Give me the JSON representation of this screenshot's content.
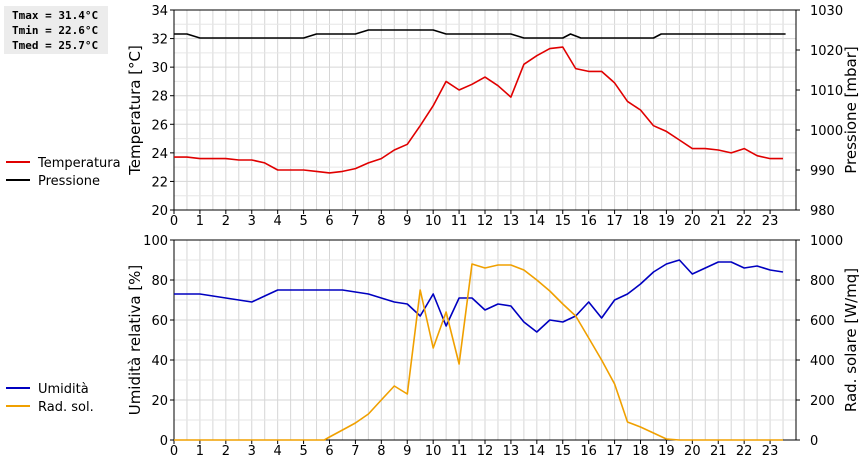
{
  "stats": {
    "tmax": "Tmax = 31.4°C",
    "tmin": "Tmin = 22.6°C",
    "tmed": "Tmed = 25.7°C"
  },
  "chart_data": [
    {
      "type": "line",
      "title": "",
      "xlabel": "",
      "x_ticks": [
        0,
        1,
        2,
        3,
        4,
        5,
        6,
        7,
        8,
        9,
        10,
        11,
        12,
        13,
        14,
        15,
        16,
        17,
        18,
        19,
        20,
        21,
        22,
        23
      ],
      "xlim": [
        0,
        24
      ],
      "ylabel_left": "Temperatura [°C]",
      "ylim_left": [
        20,
        34
      ],
      "yticks_left": [
        20,
        22,
        24,
        26,
        28,
        30,
        32,
        34
      ],
      "ylabel_right": "Pressione [mbar]",
      "ylim_right": [
        980,
        1030
      ],
      "yticks_right": [
        980,
        990,
        1000,
        1010,
        1020,
        1030
      ],
      "grid": true,
      "legend_position": "left",
      "series": [
        {
          "name": "Temperatura",
          "axis": "left",
          "color": "#e00000",
          "x": [
            0,
            0.5,
            1,
            1.5,
            2,
            2.5,
            3,
            3.5,
            4,
            4.5,
            5,
            5.5,
            6,
            6.5,
            7,
            7.5,
            8,
            8.5,
            9,
            9.5,
            10,
            10.5,
            11,
            11.5,
            12,
            12.5,
            13,
            13.5,
            14,
            14.5,
            15,
            15.5,
            16,
            16.5,
            17,
            17.5,
            18,
            18.5,
            19,
            19.5,
            20,
            20.5,
            21,
            21.5,
            22,
            22.5,
            23,
            23.5
          ],
          "values": [
            23.7,
            23.7,
            23.6,
            23.6,
            23.6,
            23.5,
            23.5,
            23.3,
            22.8,
            22.8,
            22.8,
            22.7,
            22.6,
            22.7,
            22.9,
            23.3,
            23.6,
            24.2,
            24.6,
            25.9,
            27.3,
            29.0,
            28.4,
            28.8,
            29.3,
            28.7,
            27.9,
            30.2,
            30.8,
            31.3,
            31.4,
            29.9,
            29.7,
            29.7,
            28.9,
            27.6,
            27.0,
            25.9,
            25.5,
            24.9,
            24.3,
            24.3,
            24.2,
            24.0,
            24.3,
            23.8,
            23.6,
            23.6
          ]
        },
        {
          "name": "Pressione",
          "axis": "right",
          "color": "#000000",
          "x": [
            0,
            0.5,
            1,
            2,
            3,
            4,
            5,
            5.5,
            6,
            7,
            7.5,
            8,
            9,
            10,
            10.5,
            11,
            12,
            13,
            13.5,
            14,
            15,
            15.3,
            15.7,
            16,
            17,
            18,
            18.5,
            18.8,
            19,
            20,
            21,
            22,
            23,
            23.6
          ],
          "values": [
            1024,
            1024,
            1023,
            1023,
            1023,
            1023,
            1023,
            1024,
            1024,
            1024,
            1025,
            1025,
            1025,
            1025,
            1024,
            1024,
            1024,
            1024,
            1023,
            1023,
            1023,
            1024,
            1023,
            1023,
            1023,
            1023,
            1023,
            1024,
            1024,
            1024,
            1024,
            1024,
            1024,
            1024
          ]
        }
      ]
    },
    {
      "type": "line",
      "title": "",
      "xlabel": "",
      "x_ticks": [
        0,
        1,
        2,
        3,
        4,
        5,
        6,
        7,
        8,
        9,
        10,
        11,
        12,
        13,
        14,
        15,
        16,
        17,
        18,
        19,
        20,
        21,
        22,
        23
      ],
      "xlim": [
        0,
        24
      ],
      "ylabel_left": "Umidità relativa [%]",
      "ylim_left": [
        0,
        100
      ],
      "yticks_left": [
        0,
        20,
        40,
        60,
        80,
        100
      ],
      "ylabel_right": "Rad. solare [W/mq]",
      "ylim_right": [
        0,
        1000
      ],
      "yticks_right": [
        0,
        200,
        400,
        600,
        800,
        1000
      ],
      "grid": true,
      "legend_position": "left",
      "series": [
        {
          "name": "Umidità",
          "axis": "left",
          "color": "#0000c0",
          "x": [
            0,
            0.5,
            1,
            1.5,
            2,
            2.5,
            3,
            3.5,
            4,
            4.5,
            5,
            5.5,
            6,
            6.5,
            7,
            7.5,
            8,
            8.5,
            9,
            9.5,
            10,
            10.5,
            11,
            11.5,
            12,
            12.5,
            13,
            13.5,
            14,
            14.5,
            15,
            15.5,
            16,
            16.5,
            17,
            17.5,
            18,
            18.5,
            19,
            19.5,
            20,
            20.5,
            21,
            21.5,
            22,
            22.5,
            23,
            23.5
          ],
          "values": [
            73,
            73,
            73,
            72,
            71,
            70,
            69,
            72,
            75,
            75,
            75,
            75,
            75,
            75,
            74,
            73,
            71,
            69,
            68,
            62,
            73,
            57,
            71,
            71,
            65,
            68,
            67,
            59,
            54,
            60,
            59,
            62,
            69,
            61,
            70,
            73,
            78,
            84,
            88,
            90,
            83,
            86,
            89,
            89,
            86,
            87,
            85,
            84
          ]
        },
        {
          "name": "Rad. sol.",
          "axis": "right",
          "color": "#f0a000",
          "x": [
            0,
            0.5,
            1,
            1.5,
            2,
            2.5,
            3,
            3.5,
            4,
            4.5,
            5,
            5.5,
            5.8,
            6,
            6.5,
            7,
            7.5,
            8,
            8.5,
            9,
            9.5,
            10,
            10.5,
            11,
            11.5,
            12,
            12.5,
            13,
            13.5,
            14,
            14.5,
            15,
            15.5,
            16,
            16.5,
            17,
            17.5,
            18,
            18.5,
            19,
            19.5,
            20,
            20.5,
            21,
            21.5,
            22,
            22.5,
            23,
            23.5
          ],
          "values": [
            0,
            0,
            0,
            0,
            0,
            0,
            0,
            0,
            0,
            0,
            0,
            0,
            0,
            15,
            50,
            85,
            130,
            200,
            270,
            230,
            750,
            460,
            640,
            380,
            880,
            860,
            875,
            875,
            850,
            800,
            745,
            680,
            620,
            510,
            400,
            280,
            90,
            65,
            35,
            5,
            0,
            0,
            0,
            0,
            0,
            0,
            0,
            0,
            0
          ]
        }
      ]
    }
  ]
}
